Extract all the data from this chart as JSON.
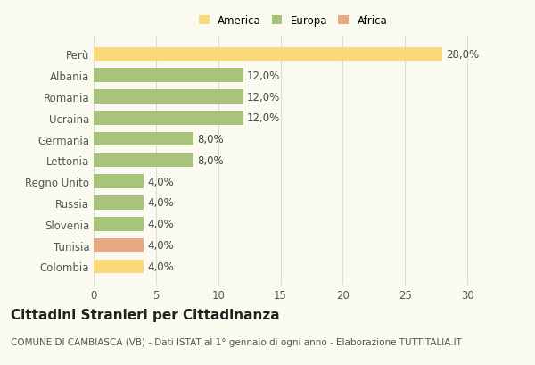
{
  "categories": [
    "Perù",
    "Albania",
    "Romania",
    "Ucraina",
    "Germania",
    "Lettonia",
    "Regno Unito",
    "Russia",
    "Slovenia",
    "Tunisia",
    "Colombia"
  ],
  "values": [
    28.0,
    12.0,
    12.0,
    12.0,
    8.0,
    8.0,
    4.0,
    4.0,
    4.0,
    4.0,
    4.0
  ],
  "colors": [
    "#F9D97A",
    "#A8C47A",
    "#A8C47A",
    "#A8C47A",
    "#A8C47A",
    "#A8C47A",
    "#A8C47A",
    "#A8C47A",
    "#A8C47A",
    "#E8A882",
    "#F9D97A"
  ],
  "legend_labels": [
    "America",
    "Europa",
    "Africa"
  ],
  "legend_colors": [
    "#F9D97A",
    "#A8C47A",
    "#E8A882"
  ],
  "xlim": [
    0,
    32
  ],
  "xticks": [
    0,
    5,
    10,
    15,
    20,
    25,
    30
  ],
  "title": "Cittadini Stranieri per Cittadinanza",
  "subtitle": "COMUNE DI CAMBIASCA (VB) - Dati ISTAT al 1° gennaio di ogni anno - Elaborazione TUTTITALIA.IT",
  "bar_height": 0.65,
  "background_color": "#fafaf0",
  "grid_color": "#ddddcc",
  "label_fontsize": 8.5,
  "title_fontsize": 11,
  "subtitle_fontsize": 7.5
}
